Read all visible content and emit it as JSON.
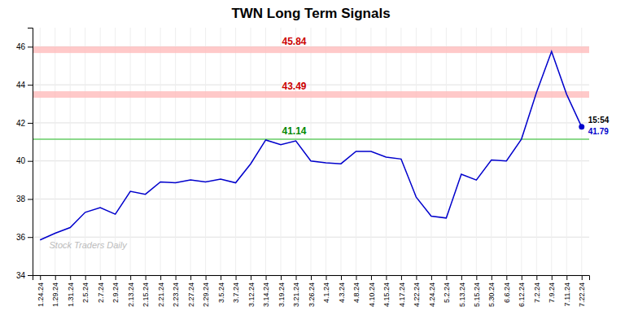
{
  "chart_data": {
    "type": "line",
    "title": "TWN Long Term Signals",
    "categories": [
      "1.24.24",
      "1.29.24",
      "1.31.24",
      "2.5.24",
      "2.7.24",
      "2.9.24",
      "2.13.24",
      "2.15.24",
      "2.21.24",
      "2.23.24",
      "2.27.24",
      "2.29.24",
      "3.5.24",
      "3.7.24",
      "3.12.24",
      "3.14.24",
      "3.19.24",
      "3.21.24",
      "3.26.24",
      "4.1.24",
      "4.3.24",
      "4.8.24",
      "4.10.24",
      "4.15.24",
      "4.17.24",
      "4.22.24",
      "4.24.24",
      "5.2.24",
      "5.13.24",
      "5.15.24",
      "5.30.24",
      "6.6.24",
      "6.12.24",
      "7.2.24",
      "7.9.24",
      "7.11.24",
      "7.22.24"
    ],
    "values": [
      35.85,
      36.2,
      36.5,
      37.3,
      37.55,
      37.2,
      38.4,
      38.25,
      38.9,
      38.85,
      39.0,
      38.9,
      39.05,
      38.85,
      39.85,
      41.1,
      40.85,
      41.05,
      40.0,
      39.9,
      39.85,
      40.5,
      40.5,
      40.2,
      40.1,
      38.1,
      37.1,
      37.0,
      39.3,
      39.0,
      40.05,
      40.0,
      41.15,
      43.6,
      45.75,
      43.5,
      41.79
    ],
    "color": "#0000cc",
    "ylim": [
      34,
      47
    ],
    "yticks": [
      34,
      36,
      38,
      40,
      42,
      44,
      46
    ],
    "grid": true,
    "reference_lines": [
      {
        "value": 45.84,
        "label": "45.84",
        "type": "band",
        "color": "#ffbbbb",
        "label_color": "#cc0000"
      },
      {
        "value": 43.49,
        "label": "43.49",
        "type": "band",
        "color": "#ffbbbb",
        "label_color": "#cc0000"
      },
      {
        "value": 41.14,
        "label": "41.14",
        "type": "line",
        "color": "#66cc66",
        "label_color": "#008800"
      }
    ],
    "last_point": {
      "value": 41.79,
      "time": "15:54",
      "label": "41.79"
    },
    "watermark": "Stock Traders Daily"
  }
}
